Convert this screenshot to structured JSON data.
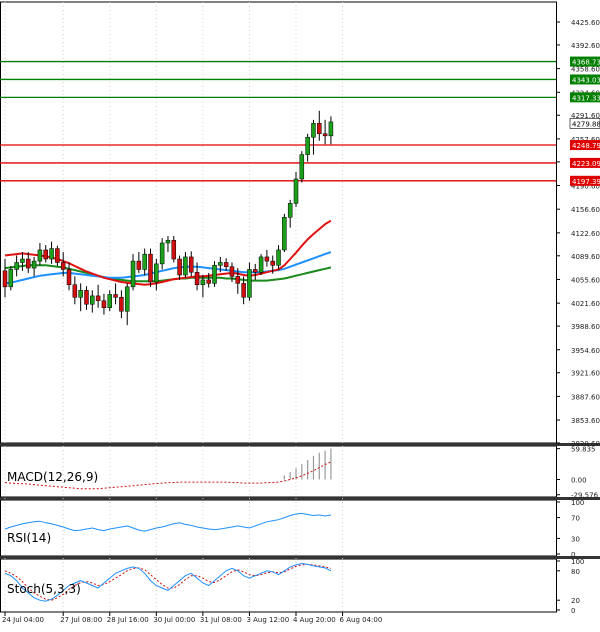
{
  "chart_data": {
    "type": "candlestick",
    "price_axis": {
      "ticks": [
        "4425.60",
        "4392.60",
        "4358.60",
        "4324.60",
        "4291.60",
        "4257.60",
        "4224.60",
        "4190.60",
        "4156.60",
        "4122.60",
        "4089.60",
        "4055.60",
        "4021.60",
        "3988.60",
        "3954.60",
        "3921.60",
        "3887.60",
        "3853.60",
        "3820.60"
      ],
      "ylim": [
        3820.6,
        4442.0
      ]
    },
    "time_axis": {
      "labels": [
        "24 Jul 04:00",
        "27 Jul 08:00",
        "28 Jul 16:00",
        "30 Jul 00:00",
        "31 Jul 08:00",
        "3 Aug 12:00",
        "4 Aug 20:00",
        "6 Aug 04:00"
      ],
      "label_index": [
        0,
        10,
        18,
        26,
        34,
        42,
        50,
        58
      ]
    },
    "current_price": {
      "label": "4279.88",
      "value": 4279.88,
      "color": "#000000"
    },
    "resistance_levels": [
      {
        "label": "4368.73",
        "value": 4368.73
      },
      {
        "label": "4343.03",
        "value": 4343.03
      },
      {
        "label": "4317.33",
        "value": 4317.33
      }
    ],
    "support_levels": [
      {
        "label": "4248.79",
        "value": 4248.79
      },
      {
        "label": "4223.09",
        "value": 4223.09
      },
      {
        "label": "4197.39",
        "value": 4197.39
      }
    ],
    "resistance_color": "#008000",
    "support_color": "#e00000",
    "bull_color": "#1aa01a",
    "bear_color": "#d01010",
    "candles": [
      [
        4068,
        4085,
        4030,
        4045
      ],
      [
        4045,
        4075,
        4040,
        4070
      ],
      [
        4070,
        4090,
        4060,
        4080
      ],
      [
        4080,
        4095,
        4068,
        4085
      ],
      [
        4085,
        4095,
        4065,
        4072
      ],
      [
        4072,
        4088,
        4060,
        4082
      ],
      [
        4082,
        4108,
        4076,
        4098
      ],
      [
        4098,
        4105,
        4080,
        4085
      ],
      [
        4085,
        4110,
        4078,
        4100
      ],
      [
        4100,
        4104,
        4075,
        4080
      ],
      [
        4080,
        4095,
        4060,
        4070
      ],
      [
        4070,
        4080,
        4040,
        4048
      ],
      [
        4048,
        4060,
        4020,
        4030
      ],
      [
        4030,
        4050,
        4010,
        4040
      ],
      [
        4040,
        4046,
        4012,
        4020
      ],
      [
        4020,
        4040,
        4008,
        4032
      ],
      [
        4032,
        4048,
        4015,
        4025
      ],
      [
        4025,
        4035,
        4005,
        4015
      ],
      [
        4015,
        4040,
        4010,
        4034
      ],
      [
        4034,
        4050,
        4020,
        4030
      ],
      [
        4030,
        4040,
        4000,
        4010
      ],
      [
        4010,
        4050,
        3990,
        4045
      ],
      [
        4045,
        4092,
        4040,
        4082
      ],
      [
        4082,
        4095,
        4065,
        4070
      ],
      [
        4070,
        4100,
        4062,
        4092
      ],
      [
        4092,
        4100,
        4045,
        4052
      ],
      [
        4052,
        4085,
        4040,
        4078
      ],
      [
        4078,
        4115,
        4070,
        4108
      ],
      [
        4108,
        4118,
        4095,
        4112
      ],
      [
        4112,
        4118,
        4080,
        4085
      ],
      [
        4085,
        4090,
        4055,
        4062
      ],
      [
        4062,
        4095,
        4058,
        4088
      ],
      [
        4088,
        4096,
        4060,
        4066
      ],
      [
        4066,
        4080,
        4040,
        4048
      ],
      [
        4048,
        4062,
        4030,
        4055
      ],
      [
        4055,
        4065,
        4044,
        4050
      ],
      [
        4050,
        4082,
        4045,
        4076
      ],
      [
        4076,
        4088,
        4066,
        4080
      ],
      [
        4080,
        4086,
        4068,
        4074
      ],
      [
        4074,
        4080,
        4052,
        4060
      ],
      [
        4060,
        4072,
        4035,
        4050
      ],
      [
        4050,
        4060,
        4020,
        4030
      ],
      [
        4030,
        4080,
        4025,
        4070
      ],
      [
        4070,
        4078,
        4055,
        4066
      ],
      [
        4066,
        4092,
        4062,
        4088
      ],
      [
        4088,
        4098,
        4074,
        4082
      ],
      [
        4082,
        4090,
        4064,
        4076
      ],
      [
        4076,
        4105,
        4070,
        4098
      ],
      [
        4098,
        4150,
        4095,
        4145
      ],
      [
        4145,
        4170,
        4130,
        4165
      ],
      [
        4165,
        4210,
        4160,
        4200
      ],
      [
        4200,
        4240,
        4195,
        4235
      ],
      [
        4235,
        4265,
        4225,
        4260
      ],
      [
        4260,
        4285,
        4235,
        4280
      ],
      [
        4280,
        4298,
        4255,
        4265
      ],
      [
        4265,
        4285,
        4250,
        4262
      ],
      [
        4262,
        4290,
        4250,
        4282
      ]
    ],
    "sma_red": [
      4090,
      4091,
      4092,
      4093,
      4092,
      4091,
      4090,
      4089,
      4087,
      4085,
      4082,
      4079,
      4075,
      4071,
      4067,
      4064,
      4061,
      4058,
      4056,
      4054,
      4052,
      4051,
      4050,
      4049,
      4048,
      4049,
      4050,
      4052,
      4054,
      4056,
      4057,
      4058,
      4059,
      4060,
      4060,
      4061,
      4062,
      4063,
      4064,
      4065,
      4064,
      4062,
      4061,
      4062,
      4064,
      4066,
      4068,
      4070,
      4076,
      4085,
      4094,
      4104,
      4113,
      4121,
      4128,
      4135,
      4140
    ],
    "sma_blue": [
      4050,
      4051,
      4053,
      4055,
      4057,
      4059,
      4061,
      4062,
      4063,
      4064,
      4065,
      4065,
      4064,
      4063,
      4062,
      4061,
      4060,
      4059,
      4058,
      4058,
      4058,
      4059,
      4060,
      4061,
      4062,
      4064,
      4066,
      4068,
      4070,
      4072,
      4073,
      4074,
      4074,
      4074,
      4073,
      4072,
      4071,
      4070,
      4069,
      4068,
      4067,
      4066,
      4066,
      4066,
      4066,
      4067,
      4068,
      4069,
      4071,
      4074,
      4077,
      4080,
      4083,
      4086,
      4089,
      4092,
      4095
    ],
    "sma_green": [
      4072,
      4073,
      4074,
      4075,
      4076,
      4076,
      4076,
      4076,
      4075,
      4074,
      4073,
      4071,
      4069,
      4067,
      4065,
      4063,
      4061,
      4059,
      4057,
      4056,
      4055,
      4054,
      4053,
      4053,
      4053,
      4053,
      4053,
      4054,
      4055,
      4056,
      4057,
      4057,
      4058,
      4058,
      4058,
      4058,
      4058,
      4058,
      4057,
      4057,
      4056,
      4055,
      4054,
      4054,
      4054,
      4054,
      4055,
      4056,
      4057,
      4059,
      4061,
      4063,
      4065,
      4067,
      4069,
      4071,
      4073
    ],
    "macd": {
      "label": "MACD(12,26,9)",
      "ticks": [
        "59.835",
        "0.00",
        "-29.576"
      ],
      "ylim": [
        -34.0,
        65.0
      ],
      "histogram": [
        0,
        0,
        0,
        0,
        0,
        0,
        0,
        0,
        0,
        0,
        0,
        0,
        0,
        0,
        0,
        0,
        0,
        0,
        0,
        0,
        0,
        0,
        0,
        0,
        0,
        0,
        0,
        0,
        0,
        0,
        0,
        0,
        0,
        0,
        0,
        0,
        0,
        0,
        0,
        0,
        0,
        0,
        0,
        0,
        0,
        0,
        0,
        0,
        8,
        14,
        22,
        30,
        38,
        46,
        52,
        56,
        60
      ],
      "signal": [
        -6,
        -7,
        -8,
        -8,
        -9,
        -10,
        -11,
        -12,
        -13,
        -14,
        -15,
        -16,
        -17,
        -18,
        -18,
        -18,
        -18,
        -17,
        -16,
        -15,
        -14,
        -13,
        -12,
        -11,
        -10,
        -9,
        -8,
        -7,
        -6,
        -6,
        -5,
        -5,
        -5,
        -5,
        -5,
        -5,
        -5,
        -5,
        -5,
        -6,
        -6,
        -7,
        -7,
        -7,
        -7,
        -6,
        -6,
        -5,
        -3,
        0,
        3,
        7,
        12,
        17,
        23,
        29,
        34
      ],
      "color": "#d01010"
    },
    "rsi": {
      "label": "RSI(14)",
      "ticks": [
        "100",
        "70",
        "30",
        "0"
      ],
      "ylim": [
        0,
        100
      ],
      "values": [
        48,
        52,
        55,
        58,
        60,
        62,
        63,
        60,
        58,
        55,
        52,
        48,
        45,
        46,
        48,
        50,
        47,
        45,
        48,
        50,
        52,
        54,
        50,
        46,
        44,
        47,
        50,
        52,
        55,
        58,
        60,
        57,
        55,
        52,
        50,
        48,
        47,
        48,
        50,
        52,
        54,
        52,
        50,
        54,
        58,
        62,
        64,
        66,
        70,
        74,
        77,
        78,
        76,
        74,
        75,
        73,
        75
      ],
      "color": "#1e90ff"
    },
    "stoch": {
      "label": "Stoch(5,3,3)",
      "ticks": [
        "100",
        "80",
        "20",
        "0"
      ],
      "ylim": [
        0,
        100
      ],
      "k": [
        75,
        70,
        60,
        45,
        35,
        25,
        20,
        18,
        22,
        30,
        40,
        50,
        55,
        60,
        55,
        50,
        45,
        55,
        65,
        75,
        80,
        85,
        88,
        85,
        75,
        60,
        50,
        45,
        40,
        50,
        60,
        70,
        75,
        65,
        55,
        50,
        60,
        70,
        80,
        85,
        80,
        70,
        65,
        70,
        75,
        80,
        78,
        72,
        80,
        88,
        92,
        95,
        93,
        90,
        88,
        86,
        80
      ],
      "d": [
        80,
        75,
        68,
        58,
        45,
        35,
        28,
        22,
        20,
        25,
        32,
        42,
        50,
        56,
        58,
        55,
        50,
        52,
        58,
        65,
        72,
        80,
        85,
        86,
        82,
        72,
        62,
        52,
        45,
        45,
        52,
        62,
        70,
        70,
        65,
        58,
        56,
        62,
        70,
        78,
        82,
        78,
        72,
        70,
        72,
        76,
        78,
        76,
        78,
        84,
        89,
        92,
        93,
        92,
        90,
        88,
        85
      ],
      "k_color": "#1e90ff",
      "d_color": "#d01010"
    }
  }
}
